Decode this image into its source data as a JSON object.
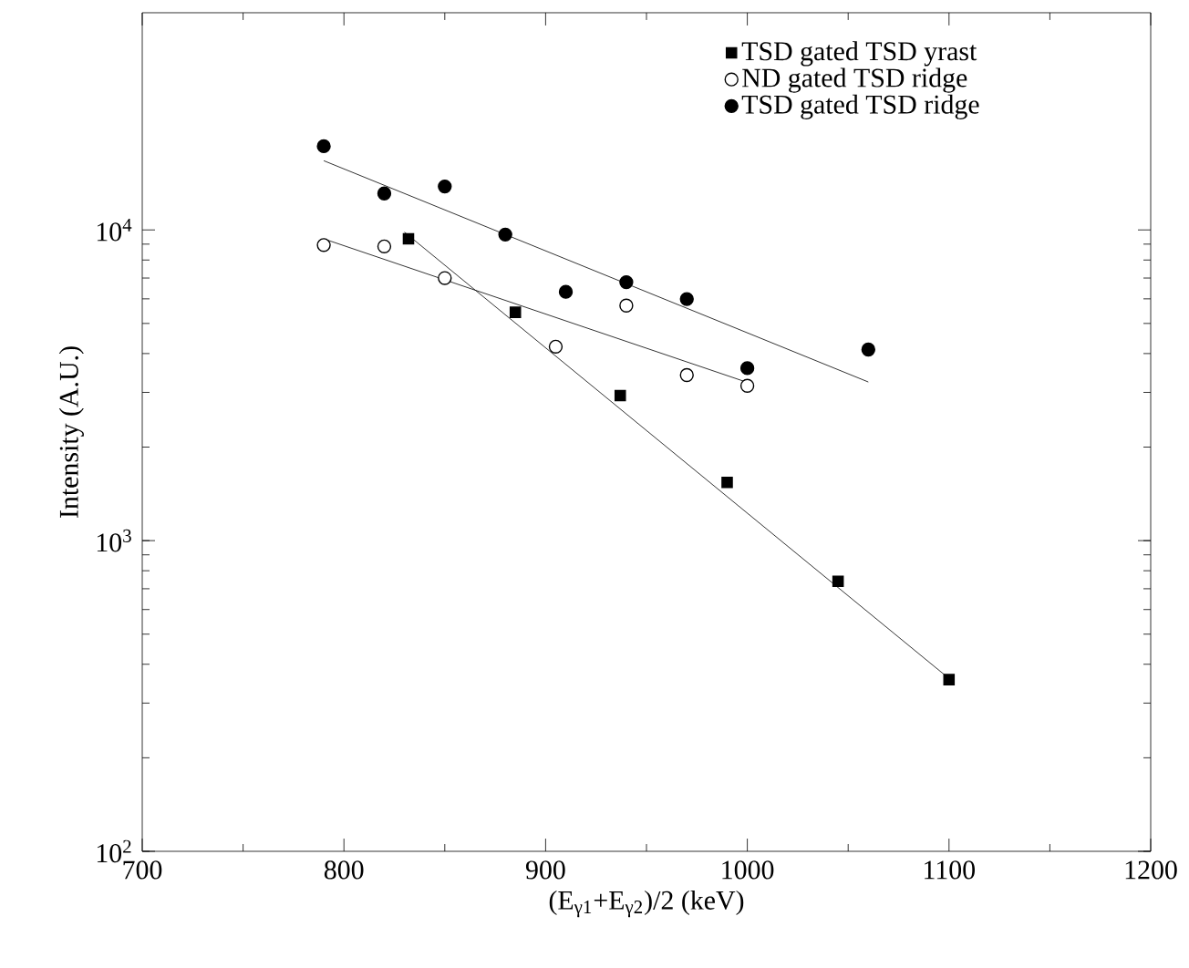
{
  "chart_data": {
    "type": "scatter",
    "xlabel": "(E$_{γ1}$+E$_{γ2}$)/2 (keV)",
    "ylabel": "Intensity (A.U.)",
    "log": "y",
    "xlim": [
      700,
      1200
    ],
    "ylim": [
      100,
      50000
    ],
    "xticks": [
      700,
      800,
      900,
      1000,
      1100,
      1200
    ],
    "yticks": [
      {
        "value": 100,
        "label": "10$^{2}$"
      },
      {
        "value": 1000,
        "label": "10$^{3}$"
      },
      {
        "value": 10000,
        "label": "10$^{4}$"
      }
    ],
    "legend": "top right",
    "grid": false,
    "series": [
      {
        "name": "TSD gated TSD yrast",
        "marker": "square",
        "color": "#000000",
        "x": [
          832,
          885,
          937,
          990,
          1045,
          1100
        ],
        "values": [
          9360,
          5430,
          2930,
          1540,
          740,
          357
        ]
      },
      {
        "name": "ND gated TSD ridge",
        "marker": "circle",
        "color": "#ffffff",
        "x": [
          790,
          820,
          850,
          905,
          940,
          970,
          1000
        ],
        "values": [
          8940,
          8850,
          7000,
          4210,
          5710,
          3410,
          3150
        ]
      },
      {
        "name": "TSD gated TSD ridge",
        "marker": "circle",
        "color": "#000000",
        "x": [
          790,
          820,
          850,
          880,
          910,
          940,
          970,
          1000,
          1060
        ],
        "values": [
          18600,
          13100,
          13800,
          9660,
          6320,
          6790,
          5990,
          3590,
          4120
        ]
      },
      {
        "type": "line",
        "marker": "none",
        "color": "#000000",
        "x": [
          830,
          1100
        ],
        "values": [
          9840,
          360
        ]
      },
      {
        "type": "line",
        "marker": "none",
        "color": "#000000",
        "x": [
          790,
          1000
        ],
        "values": [
          9360,
          3230
        ]
      },
      {
        "type": "line",
        "marker": "none",
        "color": "#000000",
        "x": [
          790,
          1060
        ],
        "values": [
          16700,
          3240
        ]
      }
    ]
  }
}
